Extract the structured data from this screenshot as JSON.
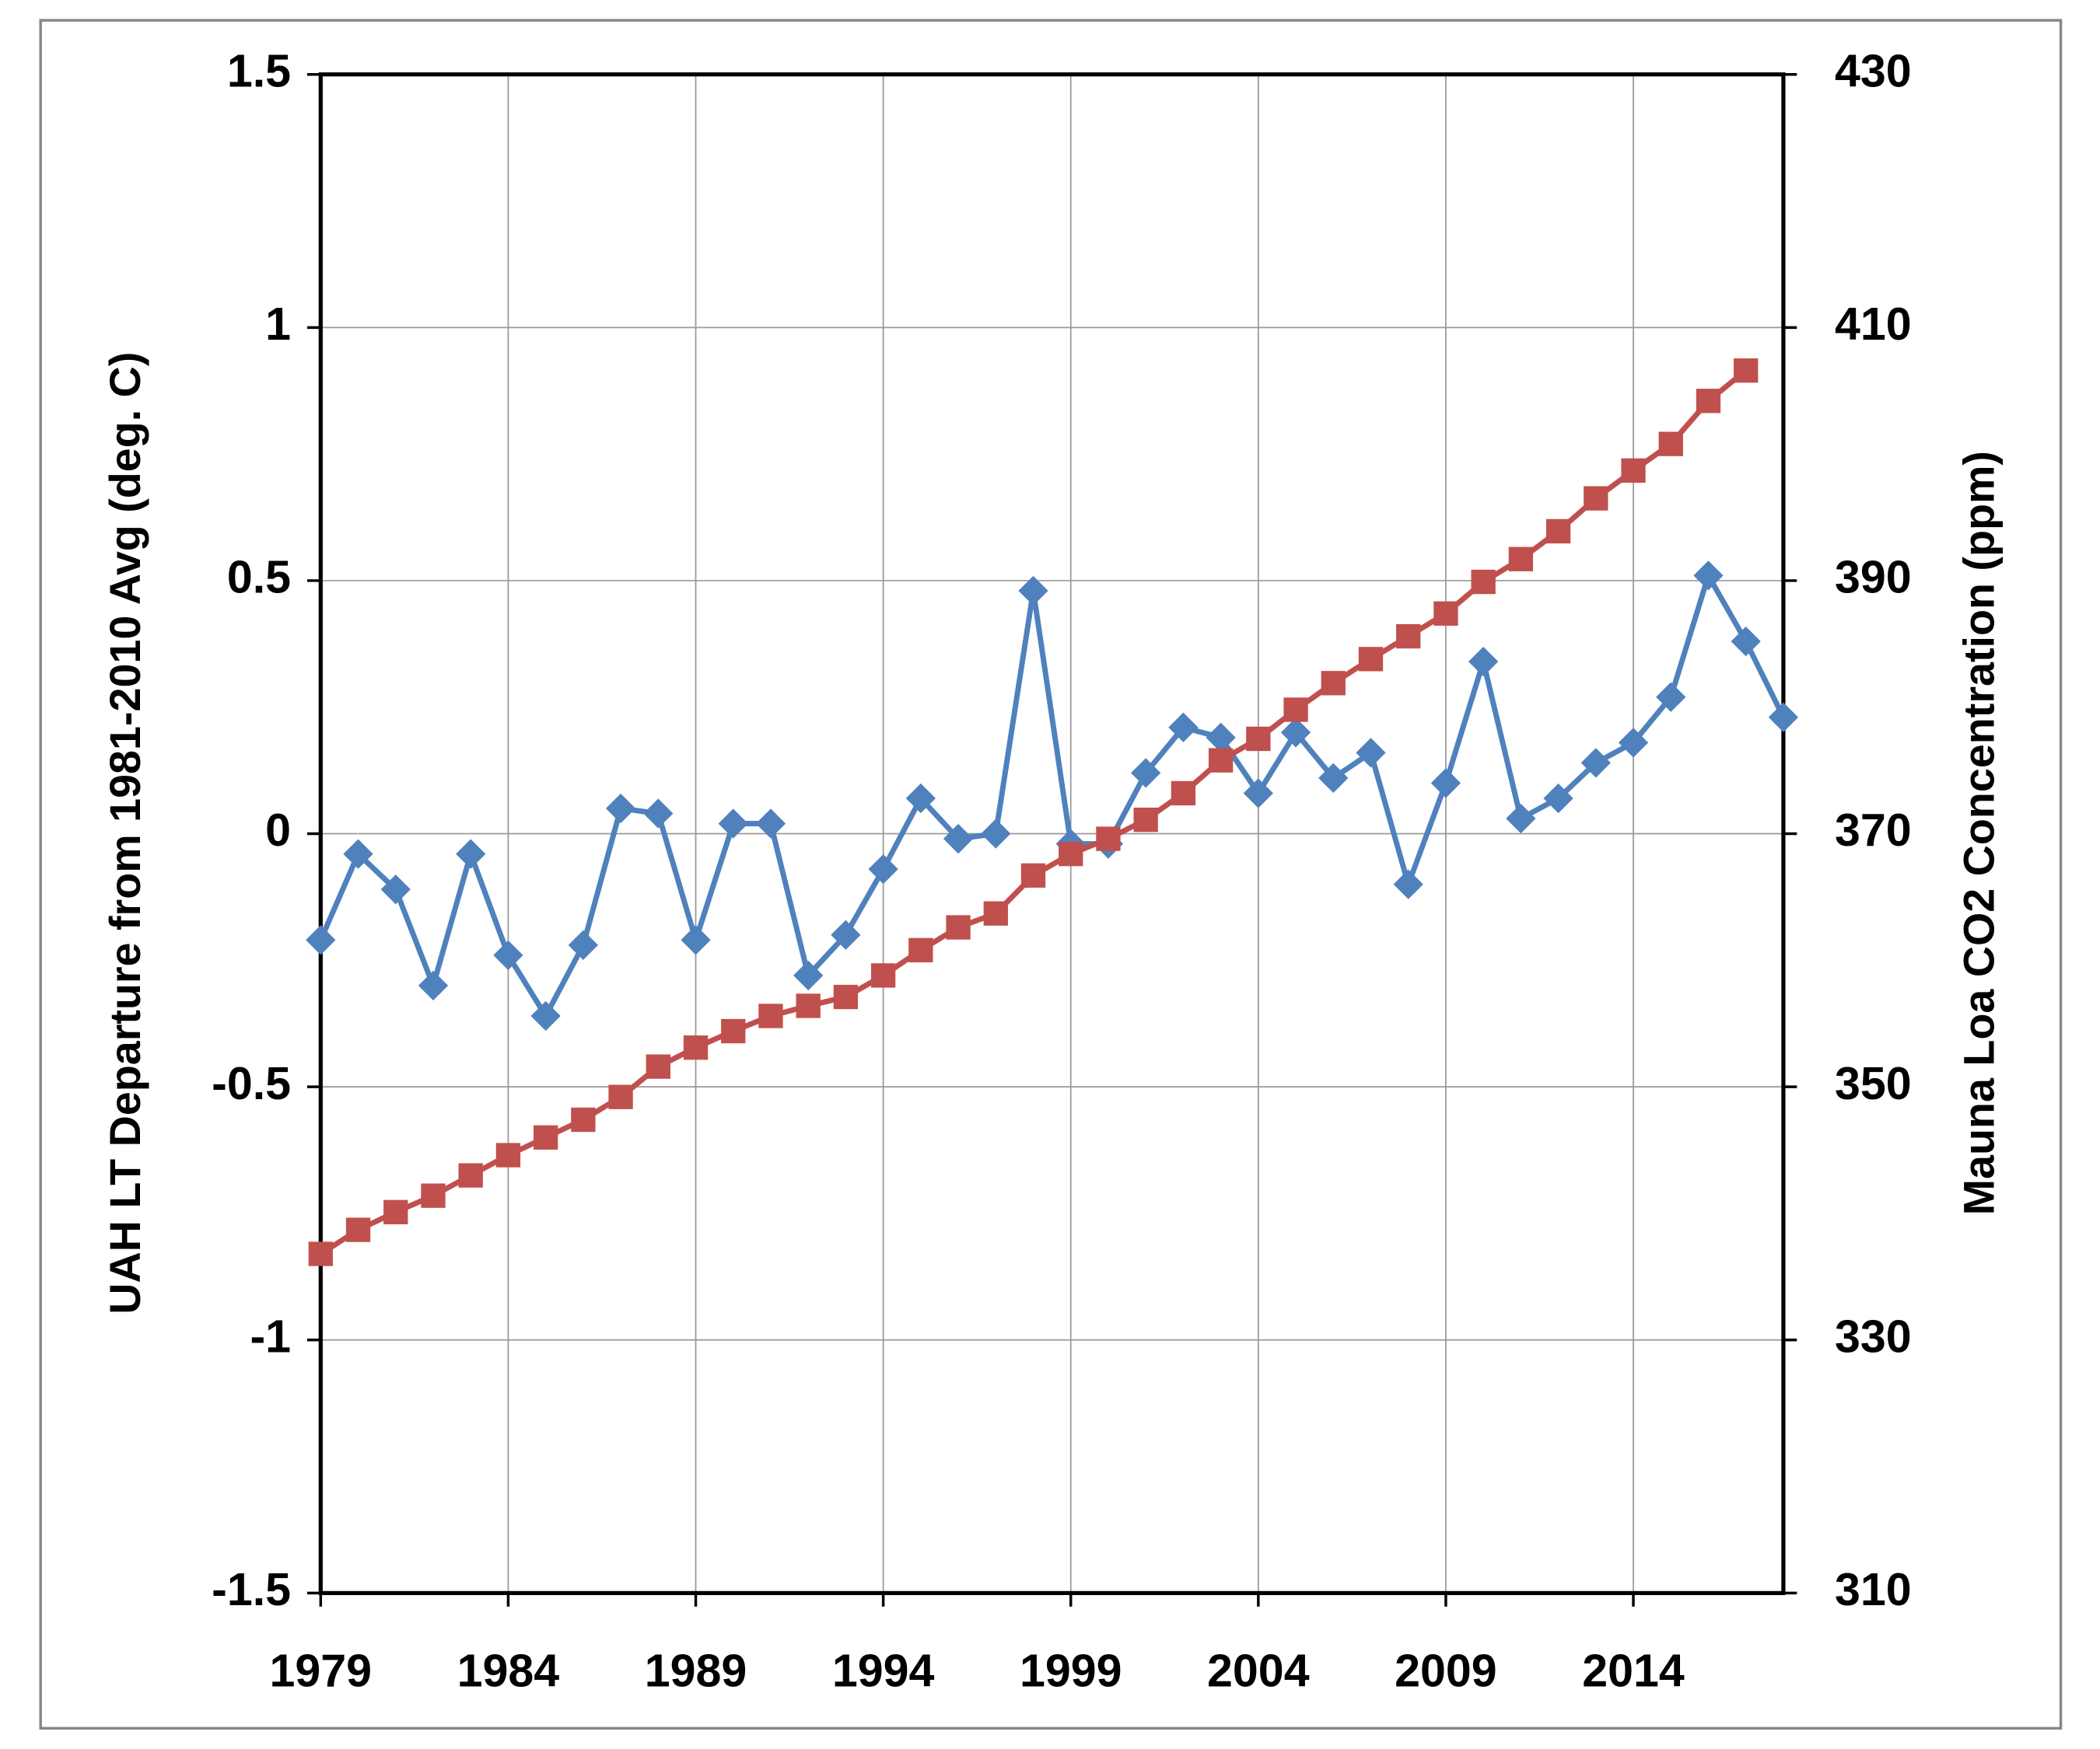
{
  "chart_data": {
    "type": "line",
    "x": [
      1979,
      1980,
      1981,
      1982,
      1983,
      1984,
      1985,
      1986,
      1987,
      1988,
      1989,
      1990,
      1991,
      1992,
      1993,
      1994,
      1995,
      1996,
      1997,
      1998,
      1999,
      2000,
      2001,
      2002,
      2003,
      2004,
      2005,
      2006,
      2007,
      2008,
      2009,
      2010,
      2011,
      2012,
      2013,
      2014,
      2015,
      2016,
      2017,
      2018
    ],
    "series": [
      {
        "color": "#4f81bd",
        "marker": "diamond",
        "axis": "y",
        "values": [
          -0.21,
          -0.04,
          -0.11,
          -0.3,
          -0.04,
          -0.24,
          -0.36,
          -0.22,
          0.05,
          0.04,
          -0.21,
          0.02,
          0.02,
          -0.28,
          -0.2,
          -0.07,
          0.07,
          -0.01,
          0.0,
          0.48,
          -0.02,
          -0.02,
          0.12,
          0.21,
          0.19,
          0.08,
          0.2,
          0.11,
          0.16,
          -0.1,
          0.1,
          0.34,
          0.03,
          0.07,
          0.14,
          0.18,
          0.27,
          0.51,
          0.38,
          0.23
        ]
      },
      {
        "color": "#c0504d",
        "marker": "square",
        "axis": "y2",
        "values": [
          336.8,
          338.7,
          340.1,
          341.4,
          343.0,
          344.6,
          346.0,
          347.4,
          349.2,
          351.6,
          353.1,
          354.4,
          355.6,
          356.4,
          357.1,
          358.8,
          360.8,
          362.6,
          363.7,
          366.7,
          368.4,
          369.6,
          371.1,
          373.2,
          375.8,
          377.5,
          379.8,
          381.9,
          383.8,
          385.6,
          387.4,
          389.9,
          391.7,
          393.9,
          396.5,
          398.7,
          400.8,
          404.2,
          406.6,
          null
        ]
      }
    ],
    "y_label": "UAH LT Departure from 1981-2010 Avg (deg. C)",
    "y2_label": "Mauna Loa CO2 Concentration (ppm)",
    "xlim": [
      1979,
      2018
    ],
    "xticks": [
      1979,
      1984,
      1989,
      1994,
      1999,
      2004,
      2009,
      2014
    ],
    "ylim": [
      -1.5,
      1.5
    ],
    "yticks": [
      1.5,
      1,
      0.5,
      0,
      -0.5,
      -1,
      -1.5
    ],
    "y2lim": [
      310,
      430
    ],
    "y2ticks": [
      430,
      410,
      390,
      370,
      350,
      330,
      310
    ],
    "grid": true
  }
}
